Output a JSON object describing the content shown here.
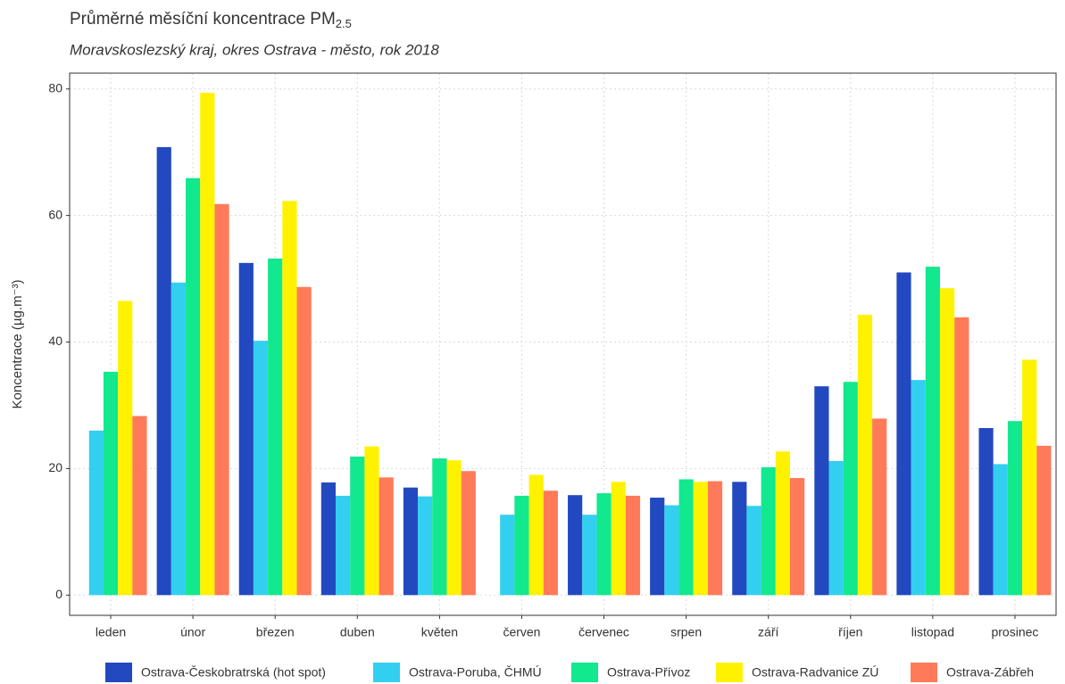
{
  "chart_data": {
    "type": "bar",
    "title": "Průměrné měsíční koncentrace PM",
    "title_subscript": "2.5",
    "subtitle": "Moravskoslezský kraj, okres Ostrava - město, rok 2018",
    "y_label": "Koncentrace (µg.m⁻³)",
    "categories": [
      "leden",
      "únor",
      "březen",
      "duben",
      "květen",
      "červen",
      "červenec",
      "srpen",
      "září",
      "říjen",
      "listopad",
      "prosinec"
    ],
    "series": [
      {
        "name": "Ostrava-Českobratrská (hot spot)",
        "color": "#2249c0",
        "values": [
          null,
          70.8,
          52.5,
          17.8,
          17.0,
          null,
          15.8,
          15.4,
          17.9,
          33.0,
          51.0,
          26.4
        ]
      },
      {
        "name": "Ostrava-Poruba, ČHMÚ",
        "color": "#33cff0",
        "values": [
          26.0,
          49.4,
          40.2,
          15.7,
          15.6,
          12.7,
          12.7,
          14.2,
          14.1,
          21.2,
          34.0,
          20.7
        ]
      },
      {
        "name": "Ostrava-Přívoz",
        "color": "#12e88e",
        "values": [
          35.3,
          65.9,
          53.2,
          21.9,
          21.6,
          15.7,
          16.1,
          18.3,
          20.2,
          33.7,
          51.9,
          27.5
        ]
      },
      {
        "name": "Ostrava-Radvanice ZÚ",
        "color": "#fff200",
        "values": [
          46.5,
          79.4,
          62.3,
          23.5,
          21.3,
          19.0,
          17.9,
          17.9,
          22.7,
          44.3,
          48.5,
          37.2
        ]
      },
      {
        "name": "Ostrava-Zábřeh",
        "color": "#ff7a59",
        "values": [
          28.3,
          61.8,
          48.7,
          18.6,
          19.6,
          16.5,
          15.7,
          18.0,
          18.5,
          27.9,
          43.9,
          23.6
        ]
      }
    ],
    "ylim": [
      -3.2,
      82.5
    ],
    "yticks": [
      0,
      20,
      40,
      60,
      80
    ],
    "grid": true,
    "legend": "bottom"
  }
}
